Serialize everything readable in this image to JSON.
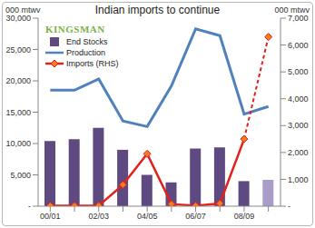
{
  "chart_data": {
    "type": "bar",
    "title": "Indian imports to continue",
    "y_label": "000 mtwv",
    "y2_label": "000 mtwv",
    "annotations": [
      "KINGSMAN"
    ],
    "legend": "upper left",
    "grid": false,
    "categories": [
      "00/01",
      null,
      "02/03",
      null,
      "04/05",
      null,
      "06/07",
      null,
      "08/09",
      null
    ],
    "ylim": [
      0,
      30000
    ],
    "yticks": [
      {
        "value": 0,
        "label": "-"
      },
      {
        "value": 5000,
        "label": "5,000"
      },
      {
        "value": 10000,
        "label": "10,000"
      },
      {
        "value": 15000,
        "label": "15,000"
      },
      {
        "value": 20000,
        "label": "20,000"
      },
      {
        "value": 25000,
        "label": "25,000"
      },
      {
        "value": 30000,
        "label": "30,000"
      }
    ],
    "y2lim": [
      0,
      7000
    ],
    "y2ticks": [
      {
        "value": 0,
        "label": "-"
      },
      {
        "value": 1000,
        "label": "1,000"
      },
      {
        "value": 2000,
        "label": "2,000"
      },
      {
        "value": 3000,
        "label": "3,000"
      },
      {
        "value": 4000,
        "label": "4,000"
      },
      {
        "value": 5000,
        "label": "5,000"
      },
      {
        "value": 6000,
        "label": "6,000"
      },
      {
        "value": 7000,
        "label": "7,000"
      }
    ],
    "series": [
      {
        "name": "End Stocks",
        "type": "bar",
        "color": "#5e4a80",
        "colors": [
          "#5e4a80",
          "#5e4a80",
          "#5e4a80",
          "#5e4a80",
          "#5e4a80",
          "#5e4a80",
          "#5e4a80",
          "#5e4a80",
          "#5e4a80",
          "#a99cc9"
        ],
        "values": [
          10400,
          10700,
          12500,
          9000,
          5000,
          3800,
          9200,
          9400,
          4000,
          4200
        ]
      },
      {
        "name": "Production",
        "type": "line",
        "color": "#4f81bd",
        "values": [
          18500,
          18500,
          20300,
          13600,
          12700,
          19200,
          28300,
          27200,
          14700,
          15900
        ]
      },
      {
        "name": "Imports (RHS)",
        "type": "line",
        "color": "#e3201b",
        "marker": "diamond",
        "axis": "y2",
        "values": [
          20,
          20,
          20,
          800,
          1950,
          80,
          20,
          100,
          2500,
          6300
        ]
      }
    ]
  }
}
